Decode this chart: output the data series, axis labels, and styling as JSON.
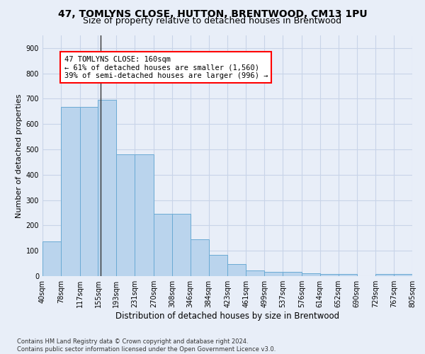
{
  "title1": "47, TOMLYNS CLOSE, HUTTON, BRENTWOOD, CM13 1PU",
  "title2": "Size of property relative to detached houses in Brentwood",
  "xlabel": "Distribution of detached houses by size in Brentwood",
  "ylabel": "Number of detached properties",
  "footnote1": "Contains HM Land Registry data © Crown copyright and database right 2024.",
  "footnote2": "Contains public sector information licensed under the Open Government Licence v3.0.",
  "bin_edges": [
    40,
    78,
    117,
    155,
    193,
    231,
    270,
    308,
    346,
    384,
    423,
    461,
    499,
    537,
    576,
    614,
    652,
    690,
    729,
    767,
    805
  ],
  "bar_values": [
    137,
    667,
    667,
    695,
    480,
    480,
    247,
    247,
    145,
    84,
    47,
    22,
    18,
    18,
    10,
    7,
    7,
    0,
    8,
    8
  ],
  "bar_color": "#bad4ed",
  "bar_edge_color": "#6aaad4",
  "vline_x": 160,
  "vline_color": "#333333",
  "annotation_line1": "47 TOMLYNS CLOSE: 160sqm",
  "annotation_line2": "← 61% of detached houses are smaller (1,560)",
  "annotation_line3": "39% of semi-detached houses are larger (996) →",
  "annotation_box_color": "white",
  "annotation_box_edge": "red",
  "ylim": [
    0,
    950
  ],
  "yticks": [
    0,
    100,
    200,
    300,
    400,
    500,
    600,
    700,
    800,
    900
  ],
  "grid_color": "#c8d4e8",
  "background_color": "#e8eef8",
  "title_fontsize": 10,
  "subtitle_fontsize": 9,
  "ylabel_fontsize": 8,
  "xlabel_fontsize": 8.5,
  "tick_fontsize": 7,
  "footnote_fontsize": 6,
  "ann_fontsize": 7.5
}
